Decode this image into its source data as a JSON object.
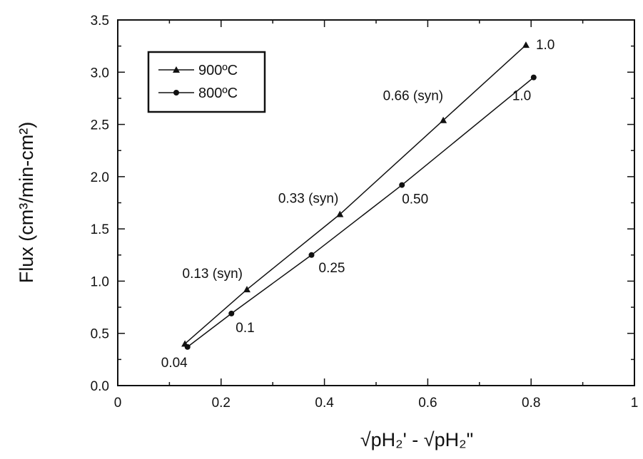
{
  "chart_data": {
    "type": "line",
    "xlabel": "√pH₂' - √pH₂\"",
    "ylabel": "Flux (cm³/min-cm²)",
    "xlim": [
      0,
      1
    ],
    "ylim": [
      0,
      3.5
    ],
    "x_ticks": [
      "0",
      "0.2",
      "0.4",
      "0.6",
      "0.8",
      "1"
    ],
    "y_ticks": [
      "0.0",
      "0.5",
      "1.0",
      "1.5",
      "2.0",
      "2.5",
      "3.0",
      "3.5"
    ],
    "legend_position": "top-left",
    "grid": false,
    "series": [
      {
        "name": "900ºC",
        "marker": "triangle",
        "x": [
          0.13,
          0.25,
          0.43,
          0.63,
          0.79
        ],
        "y": [
          0.4,
          0.92,
          1.64,
          2.54,
          3.26
        ]
      },
      {
        "name": "800ºC",
        "marker": "circle",
        "x": [
          0.135,
          0.22,
          0.375,
          0.55,
          0.805
        ],
        "y": [
          0.37,
          0.69,
          1.25,
          1.92,
          2.95
        ]
      }
    ],
    "annotations": [
      {
        "text": "1.0",
        "series": 0,
        "point": 4
      },
      {
        "text": "0.66 (syn)",
        "series": 0,
        "point": 3
      },
      {
        "text": "0.33 (syn)",
        "series": 0,
        "point": 2
      },
      {
        "text": "0.13 (syn)",
        "series": 0,
        "point": 1
      },
      {
        "text": "1.0",
        "series": 1,
        "point": 4
      },
      {
        "text": "0.50",
        "series": 1,
        "point": 3
      },
      {
        "text": "0.25",
        "series": 1,
        "point": 2
      },
      {
        "text": "0.1",
        "series": 1,
        "point": 1
      },
      {
        "text": "0.04",
        "series": 1,
        "point": 0
      }
    ]
  }
}
